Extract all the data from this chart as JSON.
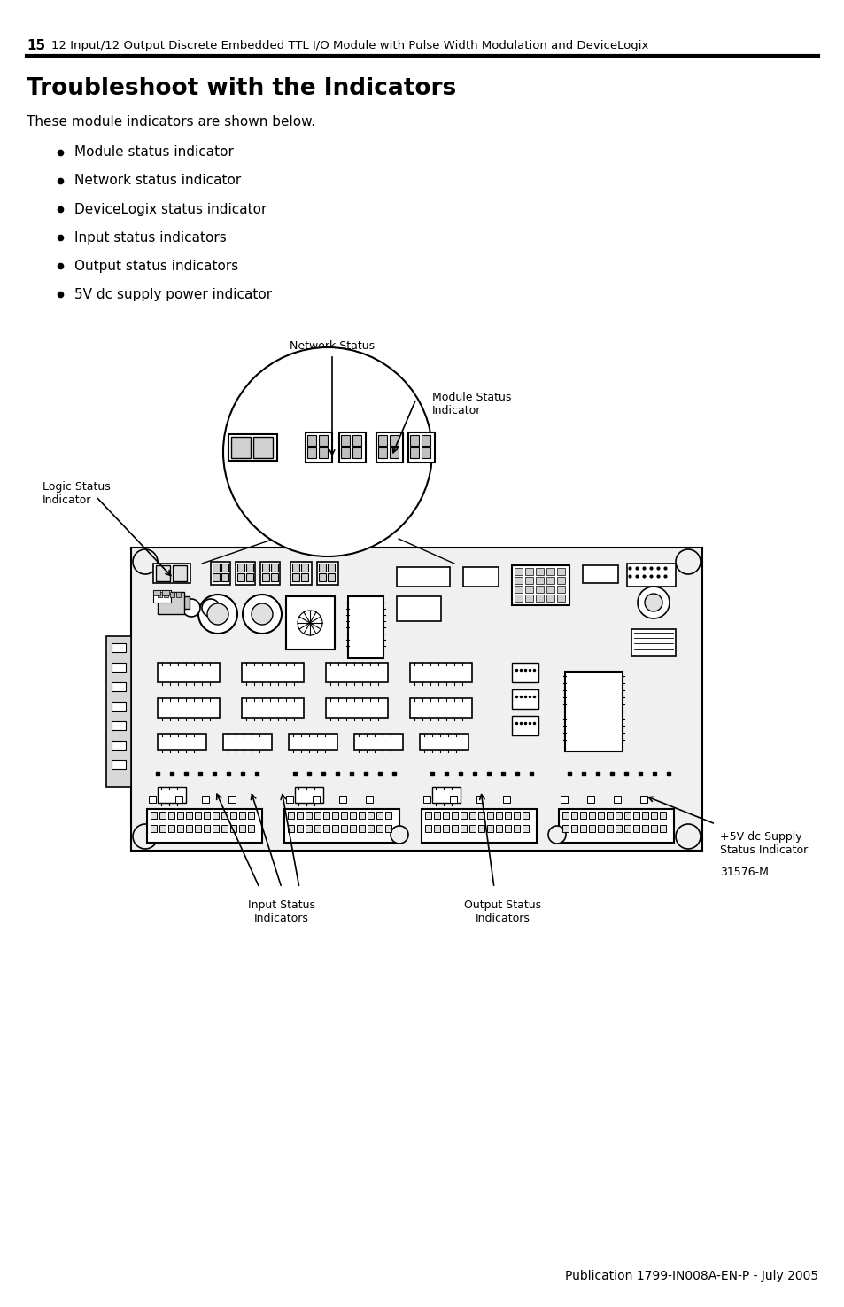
{
  "page_number": "15",
  "header_text": "12 Input/12 Output Discrete Embedded TTL I/O Module with Pulse Width Modulation and DeviceLogix",
  "title": "Troubleshoot with the Indicators",
  "intro_text": "These module indicators are shown below.",
  "bullet_items": [
    "Module status indicator",
    "Network status indicator",
    "DeviceLogix status indicator",
    "Input status indicators",
    "Output status indicators",
    "5V dc supply power indicator"
  ],
  "footer_text": "Publication 1799-IN008A-EN-P - July 2005",
  "background_color": "#ffffff",
  "text_color": "#000000"
}
